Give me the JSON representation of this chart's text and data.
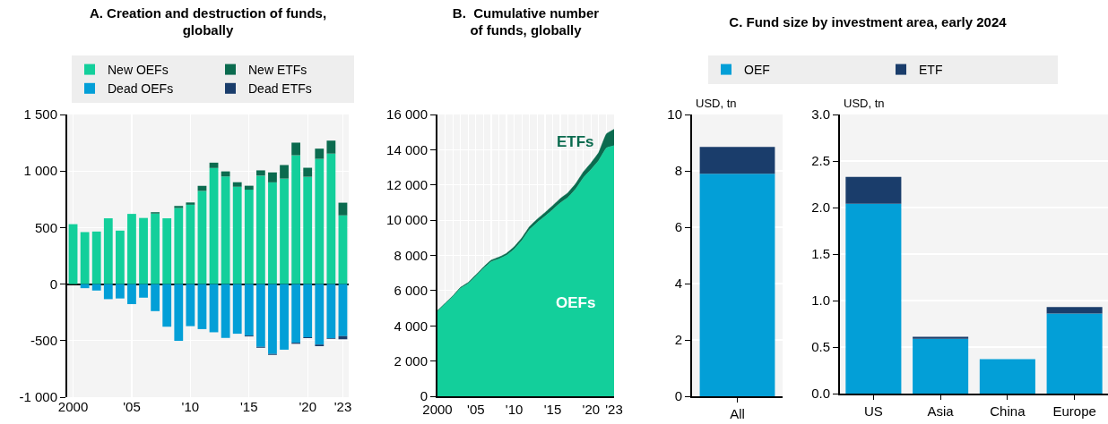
{
  "chart_data": [
    {
      "type": "bar",
      "title": "A. Creation and destruction of funds, globally",
      "x": [
        2000,
        2001,
        2002,
        2003,
        2004,
        2005,
        2006,
        2007,
        2008,
        2009,
        2010,
        2011,
        2012,
        2013,
        2014,
        2015,
        2016,
        2017,
        2018,
        2019,
        2020,
        2021,
        2022,
        2023
      ],
      "stacked": true,
      "series": [
        {
          "name": "New OEFs",
          "color": "#13cf9b",
          "values": [
            530,
            460,
            465,
            582,
            473,
            621,
            585,
            624,
            582,
            673,
            702,
            824,
            1027,
            952,
            861,
            835,
            959,
            900,
            933,
            1139,
            949,
            1108,
            1154,
            608
          ]
        },
        {
          "name": "New ETFs",
          "color": "#0b6b4f",
          "values": [
            0,
            0,
            0,
            0,
            0,
            0,
            0,
            12,
            0,
            18,
            20,
            45,
            47,
            45,
            40,
            35,
            47,
            88,
            120,
            112,
            80,
            90,
            115,
            112
          ]
        },
        {
          "name": "Dead OEFs",
          "color": "#039fd7",
          "values": [
            0,
            -36,
            -57,
            -133,
            -127,
            -177,
            -120,
            -239,
            -377,
            -502,
            -372,
            -398,
            -426,
            -476,
            -439,
            -455,
            -555,
            -618,
            -580,
            -518,
            -470,
            -535,
            -478,
            -460
          ]
        },
        {
          "name": "Dead ETFs",
          "color": "#1a3d6b",
          "values": [
            0,
            0,
            0,
            0,
            0,
            0,
            0,
            0,
            0,
            0,
            0,
            0,
            0,
            0,
            0,
            -8,
            -8,
            -8,
            0,
            -10,
            -8,
            -14,
            -6,
            -28
          ]
        }
      ],
      "xlim": [
        1999.5,
        2023.5
      ],
      "xticks": [
        2000,
        {
          "value": 2005,
          "label": "'05"
        },
        {
          "value": 2010,
          "label": "'10"
        },
        {
          "value": 2015,
          "label": "'15"
        },
        {
          "value": 2020,
          "label": "'20"
        },
        {
          "value": 2023,
          "label": "'23"
        }
      ],
      "ylim": [
        -1000,
        1500
      ],
      "yticks": [
        {
          "value": -1000,
          "label": "-1 000"
        },
        -500,
        0,
        500,
        {
          "value": 1000,
          "label": "1 000"
        },
        {
          "value": 1500,
          "label": "1 500"
        }
      ],
      "grid": true,
      "legend": "top"
    },
    {
      "type": "area",
      "title": "B.  Cumulative number of funds, globally",
      "x": [
        2000,
        2001,
        2002,
        2003,
        2004,
        2005,
        2006,
        2007,
        2008,
        2009,
        2010,
        2011,
        2012,
        2013,
        2014,
        2015,
        2016,
        2017,
        2018,
        2019,
        2020,
        2021,
        2022,
        2023
      ],
      "stacked": true,
      "series": [
        {
          "name": "OEFs",
          "color": "#13cf9b",
          "values": [
            4840,
            5250,
            5660,
            6130,
            6400,
            6820,
            7260,
            7640,
            7800,
            8010,
            8360,
            8850,
            9470,
            9870,
            10220,
            10590,
            10980,
            11290,
            11770,
            12410,
            12880,
            13390,
            14100,
            14230
          ]
        },
        {
          "name": "ETFs",
          "color": "#0b6b4f",
          "values": [
            20,
            30,
            40,
            50,
            60,
            70,
            80,
            90,
            100,
            110,
            130,
            150,
            170,
            190,
            210,
            230,
            250,
            270,
            300,
            330,
            370,
            450,
            800,
            930
          ]
        }
      ],
      "xlim": [
        2000,
        2023
      ],
      "xticks": [
        2000,
        {
          "value": 2001,
          "label": null
        },
        {
          "value": 2002,
          "label": null
        },
        {
          "value": 2003,
          "label": null
        },
        {
          "value": 2004,
          "label": null
        },
        {
          "value": 2005,
          "label": "'05"
        },
        {
          "value": 2006,
          "label": null
        },
        {
          "value": 2007,
          "label": null
        },
        {
          "value": 2008,
          "label": null
        },
        {
          "value": 2009,
          "label": null
        },
        {
          "value": 2010,
          "label": "'10"
        },
        {
          "value": 2011,
          "label": null
        },
        {
          "value": 2012,
          "label": null
        },
        {
          "value": 2013,
          "label": null
        },
        {
          "value": 2014,
          "label": null
        },
        {
          "value": 2015,
          "label": "'15"
        },
        {
          "value": 2016,
          "label": null
        },
        {
          "value": 2017,
          "label": null
        },
        {
          "value": 2018,
          "label": null
        },
        {
          "value": 2019,
          "label": null
        },
        {
          "value": 2020,
          "label": "'20"
        },
        {
          "value": 2021,
          "label": null
        },
        {
          "value": 2022,
          "label": null
        },
        {
          "value": 2023,
          "label": "'23"
        }
      ],
      "ylim": [
        0,
        16000
      ],
      "yticks": [
        0,
        {
          "value": 2000,
          "label": "2 000"
        },
        {
          "value": 4000,
          "label": "4 000"
        },
        {
          "value": 6000,
          "label": "6 000"
        },
        {
          "value": 8000,
          "label": "8 000"
        },
        {
          "value": 10000,
          "label": "10 000"
        },
        {
          "value": 12000,
          "label": "12 000"
        },
        {
          "value": 14000,
          "label": "14 000"
        },
        {
          "value": 16000,
          "label": "16 000"
        }
      ],
      "grid": true
    },
    {
      "type": "bar",
      "title": "C. Fund size by investment area, early 2024",
      "categories": [
        "All"
      ],
      "stacked": true,
      "ylabel": "USD, tn",
      "series": [
        {
          "name": "OEF",
          "color": "#039fd7",
          "values": [
            7.9
          ]
        },
        {
          "name": "ETF",
          "color": "#1a3d6b",
          "values": [
            0.95
          ]
        }
      ],
      "ylim": [
        0,
        10
      ],
      "yticks": [
        0,
        2,
        4,
        6,
        8,
        10
      ],
      "grid": "y",
      "legend": "top"
    },
    {
      "type": "bar",
      "categories": [
        "US",
        "Asia",
        "China",
        "Europe"
      ],
      "stacked": true,
      "ylabel": "USD, tn",
      "series": [
        {
          "color": "#039fd7",
          "values": [
            2.04,
            0.59,
            0.37,
            0.86
          ]
        },
        {
          "color": "#1a3d6b",
          "values": [
            0.29,
            0.02,
            0,
            0.07
          ]
        }
      ],
      "ylim": [
        0,
        3
      ],
      "yticks": [
        {
          "value": 0,
          "label": "0.0"
        },
        {
          "value": 0.5,
          "label": "0.5"
        },
        {
          "value": 1,
          "label": "1.0"
        },
        {
          "value": 1.5,
          "label": "1.5"
        },
        {
          "value": 2,
          "label": "2.0"
        },
        {
          "value": 2.5,
          "label": "2.5"
        },
        {
          "value": 3,
          "label": "3.0"
        }
      ],
      "grid": "y"
    }
  ]
}
